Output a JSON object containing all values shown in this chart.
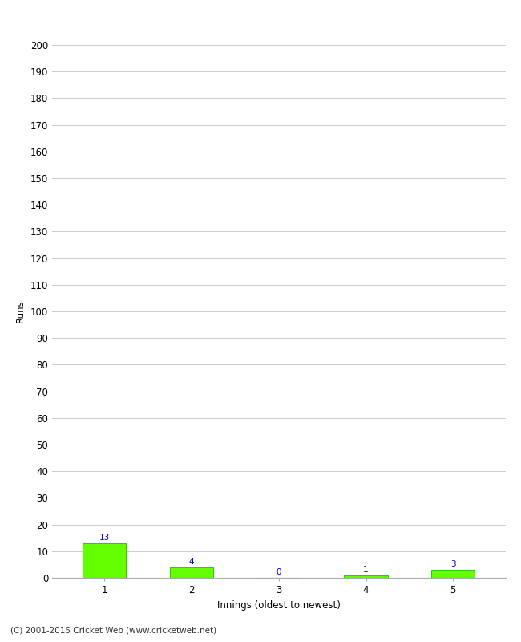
{
  "categories": [
    1,
    2,
    3,
    4,
    5
  ],
  "values": [
    13,
    4,
    0,
    1,
    3
  ],
  "bar_color": "#66ff00",
  "bar_edge_color": "#33cc00",
  "label_color": "#0000cc",
  "xlabel": "Innings (oldest to newest)",
  "ylabel": "Runs",
  "ylim": [
    0,
    200
  ],
  "ytick_step": 10,
  "background_color": "#ffffff",
  "footer": "(C) 2001-2015 Cricket Web (www.cricketweb.net)",
  "label_fontsize": 7.5,
  "axis_fontsize": 8.5,
  "footer_fontsize": 7.5,
  "grid_color": "#cccccc"
}
